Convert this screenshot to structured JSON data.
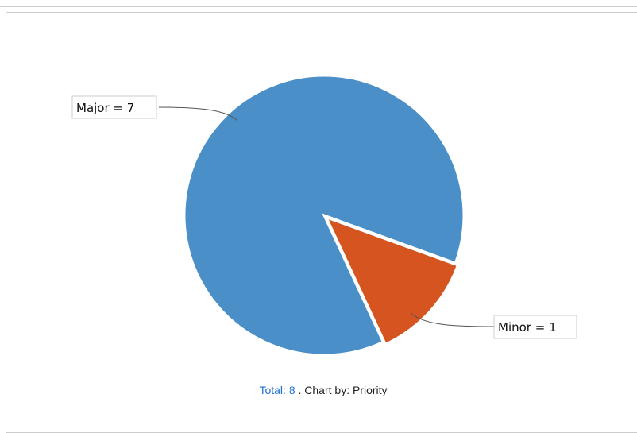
{
  "chart_data": {
    "type": "pie",
    "slices": [
      {
        "label": "Major",
        "value": 7,
        "color": "#4a8fc7",
        "display": "Major = 7"
      },
      {
        "label": "Minor",
        "value": 1,
        "color": "#d55420",
        "display": "Minor = 1"
      }
    ]
  },
  "caption": {
    "total_link": "Total: 8",
    "suffix": ". Chart by: Priority"
  }
}
